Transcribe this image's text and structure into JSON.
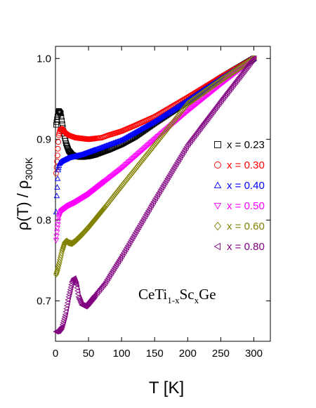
{
  "chart_data": {
    "type": "scatter",
    "title": "",
    "xlabel": "T [K]",
    "ylabel": "ρ(T) / ρ",
    "ylabel_subscript": "300K",
    "annotation": {
      "main": "CeTi",
      "sub1": "1-x",
      "mid": "Sc",
      "sub2": "x",
      "tail": "Ge"
    },
    "xlim": [
      0,
      325
    ],
    "ylim": [
      0.65,
      1.015
    ],
    "xticks": [
      0,
      50,
      100,
      150,
      200,
      250,
      300
    ],
    "yticks": [
      0.7,
      0.8,
      0.9,
      1.0
    ],
    "ytick_labels": [
      "0.7",
      "0.8",
      "0.9",
      "1.0"
    ],
    "grid": false,
    "legend_position": "right",
    "series": [
      {
        "name": "x = 0.23",
        "color": "#000000",
        "marker": "square",
        "x": [
          1,
          3,
          5,
          8,
          12,
          16,
          20,
          25,
          30,
          40,
          50,
          60,
          70,
          80,
          100,
          120,
          150,
          200,
          250,
          300
        ],
        "y": [
          0.918,
          0.928,
          0.935,
          0.932,
          0.91,
          0.895,
          0.886,
          0.881,
          0.879,
          0.878,
          0.879,
          0.881,
          0.884,
          0.887,
          0.894,
          0.903,
          0.92,
          0.947,
          0.976,
          1.0
        ]
      },
      {
        "name": "x = 0.30",
        "color": "#ff0000",
        "marker": "circle",
        "x": [
          1,
          3,
          5,
          7,
          10,
          15,
          20,
          30,
          40,
          50,
          60,
          70,
          80,
          100,
          120,
          150,
          200,
          250,
          300
        ],
        "y": [
          0.858,
          0.88,
          0.905,
          0.912,
          0.913,
          0.908,
          0.905,
          0.902,
          0.901,
          0.9,
          0.901,
          0.902,
          0.905,
          0.91,
          0.917,
          0.928,
          0.952,
          0.977,
          1.0
        ]
      },
      {
        "name": "x = 0.40",
        "color": "#0000ff",
        "marker": "triangle-up",
        "x": [
          1,
          2,
          4,
          6,
          8,
          10,
          15,
          20,
          30,
          40,
          50,
          60,
          80,
          100,
          150,
          200,
          250,
          300
        ],
        "y": [
          0.81,
          0.83,
          0.862,
          0.87,
          0.872,
          0.873,
          0.875,
          0.877,
          0.879,
          0.881,
          0.884,
          0.887,
          0.893,
          0.899,
          0.922,
          0.948,
          0.975,
          1.0
        ]
      },
      {
        "name": "x = 0.50",
        "color": "#ff00ff",
        "marker": "triangle-down",
        "x": [
          1,
          3,
          5,
          8,
          10,
          15,
          20,
          30,
          50,
          75,
          100,
          150,
          200,
          250,
          300
        ],
        "y": [
          0.775,
          0.79,
          0.803,
          0.81,
          0.812,
          0.815,
          0.818,
          0.822,
          0.832,
          0.848,
          0.864,
          0.9,
          0.935,
          0.968,
          1.0
        ]
      },
      {
        "name": "x = 0.60",
        "color": "#808000",
        "marker": "diamond",
        "x": [
          1,
          3,
          6,
          10,
          14,
          17,
          20,
          25,
          30,
          40,
          50,
          75,
          100,
          150,
          200,
          250,
          300
        ],
        "y": [
          0.733,
          0.738,
          0.748,
          0.762,
          0.772,
          0.774,
          0.772,
          0.771,
          0.774,
          0.782,
          0.791,
          0.816,
          0.842,
          0.893,
          0.944,
          0.973,
          1.0
        ]
      },
      {
        "name": "x = 0.80",
        "color": "#800080",
        "marker": "triangle-left",
        "x": [
          1,
          5,
          10,
          15,
          20,
          25,
          28,
          32,
          35,
          40,
          45,
          50,
          60,
          75,
          100,
          150,
          200,
          250,
          300
        ],
        "y": [
          0.662,
          0.663,
          0.668,
          0.683,
          0.705,
          0.723,
          0.728,
          0.72,
          0.705,
          0.695,
          0.693,
          0.697,
          0.707,
          0.722,
          0.755,
          0.825,
          0.893,
          0.947,
          1.0
        ]
      }
    ]
  }
}
